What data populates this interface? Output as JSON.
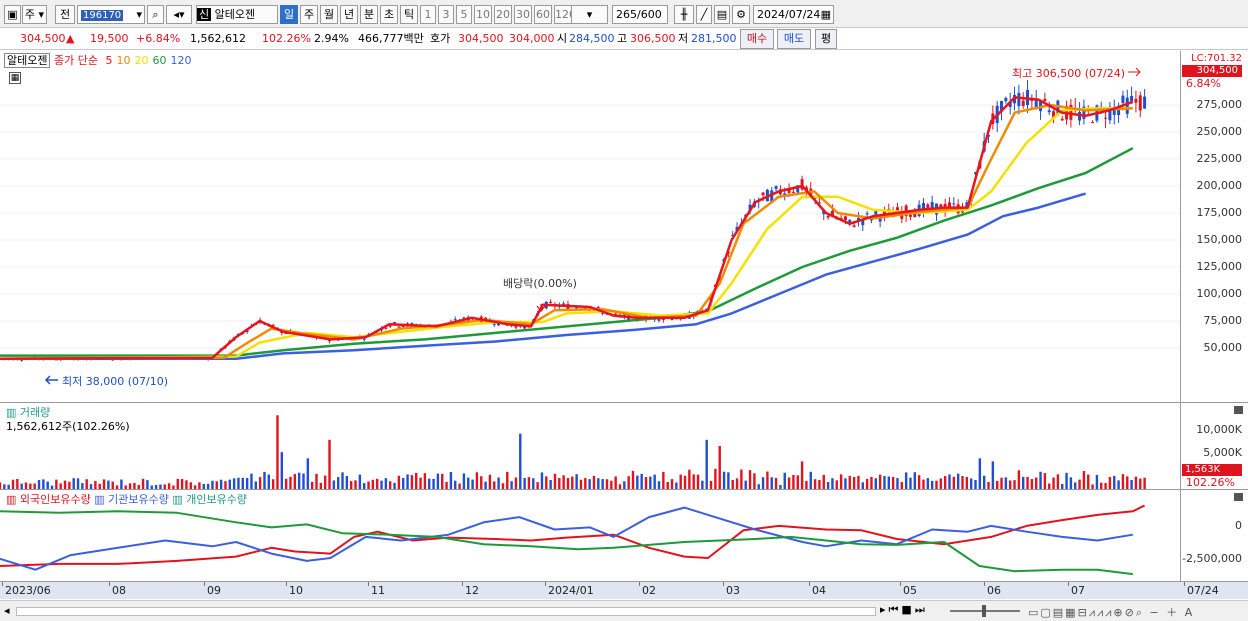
{
  "toolbar": {
    "market": "주",
    "prev": "전",
    "code": "196170",
    "stock_name": "알테오젠",
    "badge": "신",
    "periods": [
      "일",
      "주",
      "월",
      "년",
      "분",
      "초",
      "틱"
    ],
    "active_period": "일",
    "nums": [
      "1",
      "3",
      "5",
      "10",
      "20",
      "30",
      "60",
      "120"
    ],
    "count": "265",
    "count_total": "/600",
    "date": "2024/07/24"
  },
  "quote": {
    "price": "304,500",
    "change_arrow": "▲",
    "change": "19,500",
    "change_pct": "+6.84%",
    "volume": "1,562,612",
    "vol_ratio": "102.26%",
    "turnover": "2.94%",
    "amount": "466,777백만",
    "hoga_label": "호가",
    "ask": "304,500",
    "bid": "304,000",
    "open_label": "시",
    "open": "284,500",
    "high_label": "고",
    "high": "306,500",
    "low_label": "저",
    "low": "281,500",
    "buy_btn": "매수",
    "sell_btn": "매도",
    "eval_btn": "평"
  },
  "price_panel": {
    "legend_name": "알테오젠",
    "legend_type": "종가 단순",
    "ma": [
      {
        "label": "5",
        "color": "#e8141e"
      },
      {
        "label": "10",
        "color": "#f08a00"
      },
      {
        "label": "20",
        "color": "#f5e100"
      },
      {
        "label": "60",
        "color": "#1f9a3a"
      },
      {
        "label": "120",
        "color": "#3b5fe0"
      }
    ],
    "lc_label": "LC:701.32",
    "last_price": "304,500",
    "last_pct": "6.84%",
    "max_label": "최고 306,500 (07/24)",
    "min_label": "최저 38,000 (07/10)",
    "div_label": "배당락(0.00%)"
  },
  "volume_panel": {
    "title": "거래량",
    "sub": "1,562,612주(102.26%)",
    "last_value": "1,563K",
    "last_pct": "102.26%"
  },
  "holding_panel": {
    "foreign": "외국인보유수량",
    "inst": "기관보유수량",
    "indiv": "개인보유수량"
  },
  "x_labels": [
    "2023/06",
    "08",
    "09",
    "10",
    "11",
    "12",
    "2024/01",
    "02",
    "03",
    "04",
    "05",
    "06",
    "07",
    "07/24"
  ],
  "chart_data": [
    {
      "type": "line",
      "title": "알테오젠",
      "ylabel": "",
      "ylim": [
        0,
        325000
      ],
      "yticks": [
        "50,000",
        "75,000",
        "100,000",
        "125,000",
        "150,000",
        "175,000",
        "200,000",
        "225,000",
        "250,000",
        "275,000"
      ],
      "series": [
        {
          "name": "5",
          "color": "#e8141e",
          "points": [
            [
              0,
              40
            ],
            [
              0.18,
              41
            ],
            [
              0.2,
              60
            ],
            [
              0.22,
              75
            ],
            [
              0.24,
              65
            ],
            [
              0.28,
              58
            ],
            [
              0.31,
              60
            ],
            [
              0.33,
              72
            ],
            [
              0.37,
              70
            ],
            [
              0.4,
              78
            ],
            [
              0.43,
              72
            ],
            [
              0.45,
              70
            ],
            [
              0.46,
              90
            ],
            [
              0.5,
              88
            ],
            [
              0.52,
              80
            ],
            [
              0.54,
              78
            ],
            [
              0.58,
              78
            ],
            [
              0.6,
              85
            ],
            [
              0.62,
              150
            ],
            [
              0.64,
              185
            ],
            [
              0.66,
              195
            ],
            [
              0.68,
              200
            ],
            [
              0.7,
              175
            ],
            [
              0.72,
              165
            ],
            [
              0.74,
              172
            ],
            [
              0.78,
              178
            ],
            [
              0.8,
              180
            ],
            [
              0.82,
              180
            ],
            [
              0.84,
              260
            ],
            [
              0.86,
              282
            ],
            [
              0.88,
              280
            ],
            [
              0.9,
              268
            ],
            [
              0.92,
              265
            ],
            [
              0.94,
              270
            ],
            [
              0.96,
              278
            ]
          ]
        },
        {
          "name": "10",
          "color": "#f08a00",
          "points": [
            [
              0,
              40
            ],
            [
              0.19,
              41
            ],
            [
              0.21,
              55
            ],
            [
              0.23,
              68
            ],
            [
              0.26,
              63
            ],
            [
              0.3,
              58
            ],
            [
              0.34,
              68
            ],
            [
              0.38,
              72
            ],
            [
              0.41,
              76
            ],
            [
              0.45,
              72
            ],
            [
              0.47,
              85
            ],
            [
              0.51,
              86
            ],
            [
              0.55,
              78
            ],
            [
              0.59,
              80
            ],
            [
              0.61,
              110
            ],
            [
              0.63,
              165
            ],
            [
              0.66,
              190
            ],
            [
              0.69,
              195
            ],
            [
              0.71,
              175
            ],
            [
              0.74,
              170
            ],
            [
              0.78,
              176
            ],
            [
              0.82,
              180
            ],
            [
              0.84,
              225
            ],
            [
              0.86,
              268
            ],
            [
              0.89,
              275
            ],
            [
              0.92,
              270
            ],
            [
              0.96,
              272
            ]
          ]
        },
        {
          "name": "20",
          "color": "#f5e100",
          "points": [
            [
              0,
              40
            ],
            [
              0.2,
              42
            ],
            [
              0.22,
              55
            ],
            [
              0.26,
              64
            ],
            [
              0.3,
              60
            ],
            [
              0.34,
              65
            ],
            [
              0.38,
              70
            ],
            [
              0.42,
              74
            ],
            [
              0.46,
              74
            ],
            [
              0.48,
              82
            ],
            [
              0.52,
              84
            ],
            [
              0.56,
              80
            ],
            [
              0.6,
              82
            ],
            [
              0.62,
              110
            ],
            [
              0.65,
              160
            ],
            [
              0.68,
              190
            ],
            [
              0.71,
              190
            ],
            [
              0.74,
              178
            ],
            [
              0.78,
              175
            ],
            [
              0.82,
              178
            ],
            [
              0.84,
              195
            ],
            [
              0.87,
              240
            ],
            [
              0.9,
              270
            ],
            [
              0.93,
              272
            ],
            [
              0.96,
              272
            ]
          ]
        },
        {
          "name": "60",
          "color": "#1f9a3a",
          "points": [
            [
              0,
              43
            ],
            [
              0.2,
              43
            ],
            [
              0.24,
              48
            ],
            [
              0.3,
              54
            ],
            [
              0.36,
              58
            ],
            [
              0.42,
              64
            ],
            [
              0.5,
              72
            ],
            [
              0.56,
              78
            ],
            [
              0.6,
              84
            ],
            [
              0.64,
              105
            ],
            [
              0.68,
              125
            ],
            [
              0.72,
              140
            ],
            [
              0.76,
              152
            ],
            [
              0.8,
              168
            ],
            [
              0.84,
              182
            ],
            [
              0.88,
              198
            ],
            [
              0.92,
              212
            ],
            [
              0.96,
              235
            ]
          ]
        },
        {
          "name": "120",
          "color": "#3b5fe0",
          "points": [
            [
              0,
              40
            ],
            [
              0.2,
              40
            ],
            [
              0.24,
              45
            ],
            [
              0.3,
              48
            ],
            [
              0.36,
              52
            ],
            [
              0.42,
              56
            ],
            [
              0.48,
              62
            ],
            [
              0.54,
              67
            ],
            [
              0.59,
              72
            ],
            [
              0.62,
              82
            ],
            [
              0.66,
              100
            ],
            [
              0.7,
              118
            ],
            [
              0.74,
              130
            ],
            [
              0.78,
              142
            ],
            [
              0.82,
              155
            ],
            [
              0.85,
              172
            ],
            [
              0.88,
              180
            ],
            [
              0.92,
              193
            ]
          ]
        }
      ]
    },
    {
      "type": "bar",
      "title": "거래량",
      "yticks": [
        "10,000K",
        "5,000K"
      ],
      "ylim": [
        0,
        14000
      ]
    },
    {
      "type": "line",
      "title": "",
      "yticks": [
        "0",
        "-2,500,000"
      ],
      "series": [
        {
          "name": "외국인보유수량",
          "color": "#e0141e",
          "points": [
            [
              0,
              0.85
            ],
            [
              0.05,
              0.82
            ],
            [
              0.1,
              0.82
            ],
            [
              0.15,
              0.78
            ],
            [
              0.2,
              0.72
            ],
            [
              0.23,
              0.6
            ],
            [
              0.25,
              0.65
            ],
            [
              0.28,
              0.68
            ],
            [
              0.3,
              0.45
            ],
            [
              0.32,
              0.38
            ],
            [
              0.35,
              0.5
            ],
            [
              0.38,
              0.46
            ],
            [
              0.42,
              0.48
            ],
            [
              0.45,
              0.5
            ],
            [
              0.48,
              0.46
            ],
            [
              0.52,
              0.42
            ],
            [
              0.55,
              0.6
            ],
            [
              0.58,
              0.72
            ],
            [
              0.6,
              0.74
            ],
            [
              0.63,
              0.36
            ],
            [
              0.66,
              0.3
            ],
            [
              0.7,
              0.35
            ],
            [
              0.73,
              0.36
            ],
            [
              0.76,
              0.48
            ],
            [
              0.8,
              0.55
            ],
            [
              0.84,
              0.45
            ],
            [
              0.87,
              0.3
            ],
            [
              0.9,
              0.22
            ],
            [
              0.93,
              0.15
            ],
            [
              0.96,
              0.1
            ],
            [
              0.97,
              0.02
            ]
          ]
        },
        {
          "name": "기관보유수량",
          "color": "#3b5fe0",
          "points": [
            [
              0,
              0.75
            ],
            [
              0.03,
              0.9
            ],
            [
              0.06,
              0.7
            ],
            [
              0.1,
              0.6
            ],
            [
              0.14,
              0.5
            ],
            [
              0.18,
              0.58
            ],
            [
              0.2,
              0.52
            ],
            [
              0.23,
              0.68
            ],
            [
              0.26,
              0.78
            ],
            [
              0.28,
              0.74
            ],
            [
              0.31,
              0.45
            ],
            [
              0.34,
              0.5
            ],
            [
              0.38,
              0.42
            ],
            [
              0.41,
              0.25
            ],
            [
              0.44,
              0.18
            ],
            [
              0.47,
              0.35
            ],
            [
              0.5,
              0.32
            ],
            [
              0.52,
              0.45
            ],
            [
              0.55,
              0.18
            ],
            [
              0.58,
              0.05
            ],
            [
              0.61,
              0.2
            ],
            [
              0.64,
              0.35
            ],
            [
              0.68,
              0.52
            ],
            [
              0.7,
              0.58
            ],
            [
              0.73,
              0.5
            ],
            [
              0.76,
              0.55
            ],
            [
              0.79,
              0.35
            ],
            [
              0.82,
              0.38
            ],
            [
              0.84,
              0.3
            ],
            [
              0.87,
              0.38
            ],
            [
              0.9,
              0.45
            ],
            [
              0.93,
              0.5
            ],
            [
              0.96,
              0.42
            ]
          ]
        },
        {
          "name": "개인보유수량",
          "color": "#1f9a3a",
          "points": [
            [
              0,
              0.1
            ],
            [
              0.05,
              0.12
            ],
            [
              0.1,
              0.1
            ],
            [
              0.15,
              0.12
            ],
            [
              0.2,
              0.25
            ],
            [
              0.23,
              0.32
            ],
            [
              0.26,
              0.28
            ],
            [
              0.29,
              0.4
            ],
            [
              0.33,
              0.42
            ],
            [
              0.37,
              0.45
            ],
            [
              0.41,
              0.55
            ],
            [
              0.45,
              0.58
            ],
            [
              0.49,
              0.62
            ],
            [
              0.52,
              0.6
            ],
            [
              0.55,
              0.56
            ],
            [
              0.58,
              0.52
            ],
            [
              0.61,
              0.5
            ],
            [
              0.64,
              0.48
            ],
            [
              0.67,
              0.45
            ],
            [
              0.7,
              0.5
            ],
            [
              0.73,
              0.55
            ],
            [
              0.76,
              0.56
            ],
            [
              0.8,
              0.52
            ],
            [
              0.83,
              0.85
            ],
            [
              0.86,
              0.92
            ],
            [
              0.9,
              0.9
            ],
            [
              0.93,
              0.9
            ],
            [
              0.96,
              0.96
            ]
          ]
        }
      ]
    }
  ]
}
